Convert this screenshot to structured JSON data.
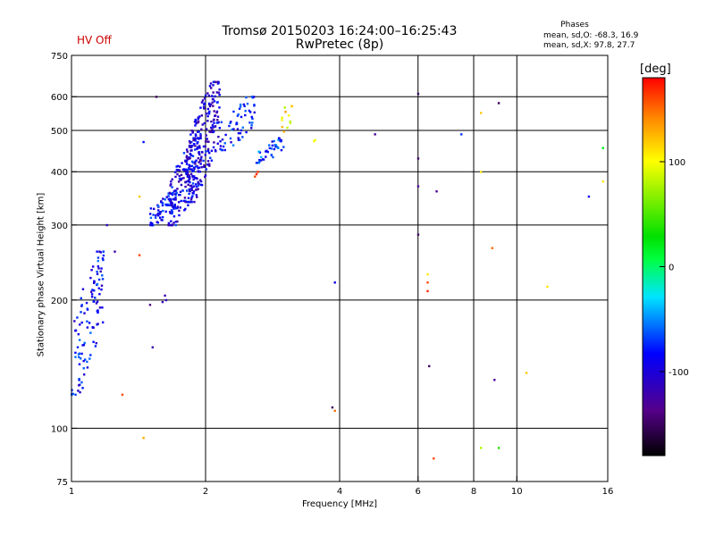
{
  "header": {
    "hv_status": "HV Off",
    "title_line1": "Tromsø 20150203 16:24:00–16:25:43",
    "title_line2": "RwPretec (8p)",
    "stats_title": "Phases",
    "stats_line1": "mean, sd,O: -68.3, 16.9",
    "stats_line2": "mean, sd,X:  97.8, 27.7"
  },
  "colorbar": {
    "label": "[deg]",
    "ticks": [
      100,
      0,
      -100
    ],
    "range": [
      -180,
      180
    ]
  },
  "colors": {
    "hv_status": "#cc0000"
  },
  "chart_data": {
    "type": "scatter",
    "title": "Tromsø 20150203 16:24:00–16:25:43",
    "subtitle": "RwPretec (8p)",
    "xlabel": "Frequency [MHz]",
    "ylabel": "Stationary phase Virtual Height [km]",
    "x_scale": "log",
    "y_scale": "log",
    "xlim": [
      1,
      16
    ],
    "ylim": [
      75,
      750
    ],
    "x_ticks": [
      1,
      2,
      4,
      6,
      8,
      10,
      16
    ],
    "y_ticks": [
      75,
      100,
      200,
      300,
      400,
      500,
      600,
      750
    ],
    "x_gridlines": [
      2,
      4,
      6,
      8,
      10
    ],
    "y_gridlines": [
      100,
      200,
      300,
      400,
      500,
      600
    ],
    "color_value": "phase [deg]",
    "clusters": [
      {
        "x_range": [
          1.0,
          1.18
        ],
        "y_range": [
          120,
          260
        ],
        "phase": -85,
        "count": 110
      },
      {
        "x_range": [
          1.5,
          1.72
        ],
        "y_range": [
          300,
          360
        ],
        "phase": -80,
        "count": 70
      },
      {
        "x_range": [
          1.65,
          1.95
        ],
        "y_range": [
          300,
          480
        ],
        "phase": -95,
        "count": 160
      },
      {
        "x_range": [
          1.8,
          2.15
        ],
        "y_range": [
          340,
          650
        ],
        "phase": -100,
        "count": 230
      },
      {
        "x_range": [
          2.15,
          2.6
        ],
        "y_range": [
          450,
          600
        ],
        "phase": -80,
        "count": 60
      },
      {
        "x_range": [
          2.6,
          3.0
        ],
        "y_range": [
          420,
          480
        ],
        "phase": -70,
        "count": 40
      },
      {
        "x_range": [
          2.95,
          3.15
        ],
        "y_range": [
          480,
          610
        ],
        "phase": 105,
        "count": 12
      }
    ],
    "points": [
      {
        "x": 2.6,
        "y": 395,
        "phase": 170
      },
      {
        "x": 2.62,
        "y": 400,
        "phase": 165
      },
      {
        "x": 2.58,
        "y": 390,
        "phase": 160
      },
      {
        "x": 1.6,
        "y": 198,
        "phase": -115
      },
      {
        "x": 1.62,
        "y": 205,
        "phase": -120
      },
      {
        "x": 1.63,
        "y": 200,
        "phase": -110
      },
      {
        "x": 3.5,
        "y": 472,
        "phase": 100
      },
      {
        "x": 3.52,
        "y": 475,
        "phase": 95
      },
      {
        "x": 4.8,
        "y": 490,
        "phase": -130
      },
      {
        "x": 3.85,
        "y": 112,
        "phase": -150
      },
      {
        "x": 3.9,
        "y": 110,
        "phase": 150
      },
      {
        "x": 3.9,
        "y": 220,
        "phase": -90
      },
      {
        "x": 6.5,
        "y": 85,
        "phase": 160
      },
      {
        "x": 6.0,
        "y": 610,
        "phase": -150
      },
      {
        "x": 6.0,
        "y": 430,
        "phase": -150
      },
      {
        "x": 6.0,
        "y": 370,
        "phase": -130
      },
      {
        "x": 6.0,
        "y": 285,
        "phase": -150
      },
      {
        "x": 6.3,
        "y": 220,
        "phase": 160
      },
      {
        "x": 6.3,
        "y": 210,
        "phase": 170
      },
      {
        "x": 6.3,
        "y": 230,
        "phase": 110
      },
      {
        "x": 6.35,
        "y": 140,
        "phase": -150
      },
      {
        "x": 6.6,
        "y": 360,
        "phase": -130
      },
      {
        "x": 7.5,
        "y": 490,
        "phase": -70
      },
      {
        "x": 8.3,
        "y": 550,
        "phase": 120
      },
      {
        "x": 8.3,
        "y": 400,
        "phase": 110
      },
      {
        "x": 8.3,
        "y": 90,
        "phase": 80
      },
      {
        "x": 9.1,
        "y": 580,
        "phase": -150
      },
      {
        "x": 9.1,
        "y": 90,
        "phase": 40
      },
      {
        "x": 8.8,
        "y": 265,
        "phase": 150
      },
      {
        "x": 8.9,
        "y": 130,
        "phase": -130
      },
      {
        "x": 10.5,
        "y": 135,
        "phase": 120
      },
      {
        "x": 11.7,
        "y": 215,
        "phase": 110
      },
      {
        "x": 14.5,
        "y": 350,
        "phase": -90
      },
      {
        "x": 15.6,
        "y": 455,
        "phase": 20
      },
      {
        "x": 15.6,
        "y": 380,
        "phase": 110
      },
      {
        "x": 1.2,
        "y": 300,
        "phase": -110
      },
      {
        "x": 1.25,
        "y": 260,
        "phase": -120
      },
      {
        "x": 1.3,
        "y": 120,
        "phase": 160
      },
      {
        "x": 1.42,
        "y": 255,
        "phase": 160
      },
      {
        "x": 1.42,
        "y": 350,
        "phase": 120
      },
      {
        "x": 1.45,
        "y": 470,
        "phase": -80
      },
      {
        "x": 1.55,
        "y": 600,
        "phase": -150
      },
      {
        "x": 1.45,
        "y": 95,
        "phase": 130
      },
      {
        "x": 1.5,
        "y": 195,
        "phase": -140
      },
      {
        "x": 1.52,
        "y": 155,
        "phase": -120
      }
    ]
  }
}
